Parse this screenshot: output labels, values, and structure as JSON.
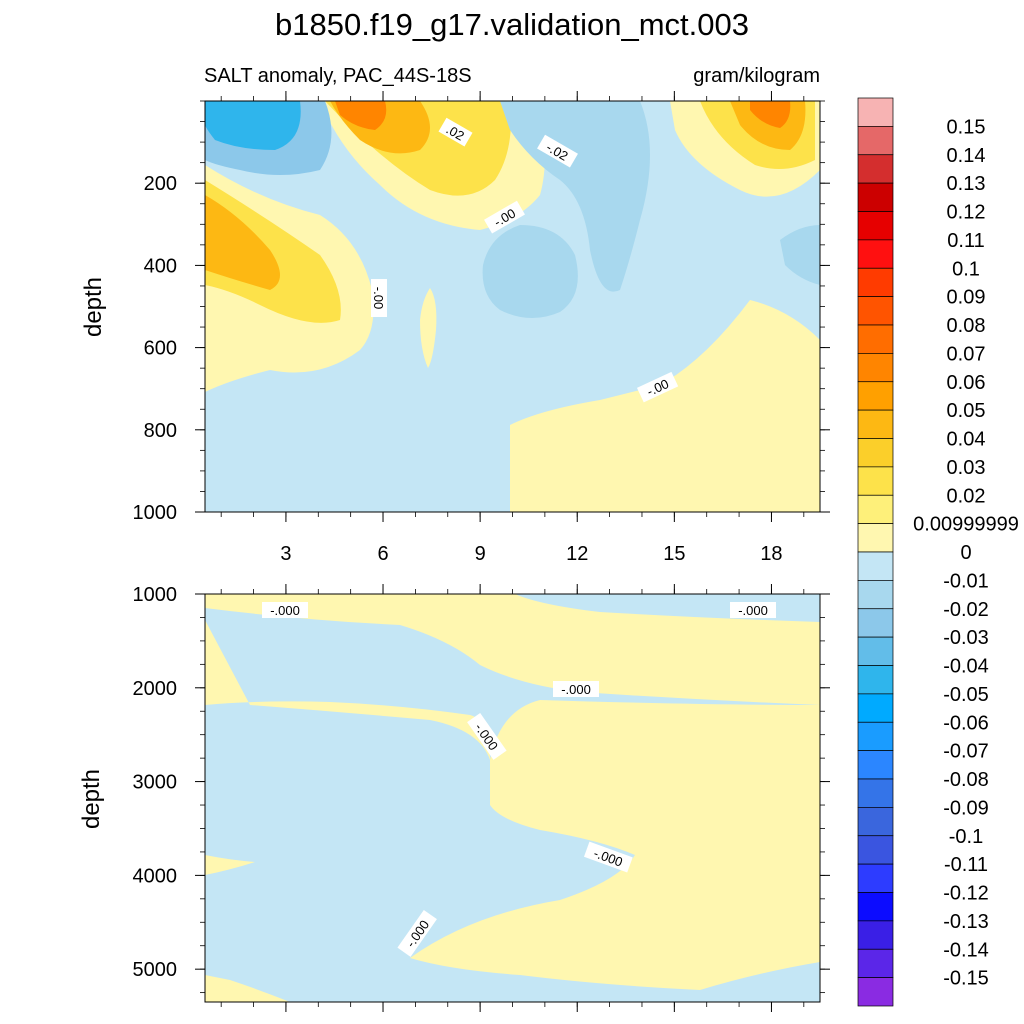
{
  "chart_data": {
    "type": "heatmap",
    "title": "b1850.f19_g17.validation_mct.003",
    "subtitle_left": "SALT anomaly, PAC_44S-18S",
    "subtitle_right": "gram/kilogram",
    "xlabel": "",
    "ylabel": "depth",
    "x_ticks": [
      "3",
      "6",
      "9",
      "12",
      "15",
      "18"
    ],
    "xlim": [
      0.5,
      19.5
    ],
    "panels": [
      {
        "name": "upper",
        "ylim": [
          1000,
          0
        ],
        "y_ticks": [
          "200",
          "400",
          "600",
          "800",
          "1000"
        ],
        "contour_labels": [
          ".02",
          "-.02",
          "-.00",
          "-.00",
          "-.00"
        ],
        "regions": [
          {
            "level": 0.005,
            "desc": "positive anomaly below ~500 m west and deep east"
          },
          {
            "level": -0.005,
            "desc": "weak negative mid-basin"
          },
          {
            "level": 0.045,
            "desc": "surface max near x=6-8"
          },
          {
            "level": 0.04,
            "desc": "max near x=19-20 surface"
          },
          {
            "level": -0.045,
            "desc": "surface min x=1-4"
          },
          {
            "level": 0.04,
            "desc": "subsurface max x=0.5-2, 250-450 m"
          }
        ]
      },
      {
        "name": "lower",
        "ylim": [
          5350,
          1000
        ],
        "y_ticks": [
          "1000",
          "2000",
          "3000",
          "4000",
          "5000"
        ],
        "contour_labels": [
          "-.000",
          "-.000",
          "-.000",
          "-.000",
          "-.000",
          "-.000"
        ],
        "regions": [
          {
            "level": 0.005,
            "desc": "positive band 1200-2100 m west, 2100-4500 m east"
          },
          {
            "level": -0.005,
            "desc": "negative band 2100-4800 m west"
          }
        ]
      }
    ],
    "colorbar": {
      "labels": [
        "0.15",
        "0.14",
        "0.13",
        "0.12",
        "0.11",
        "0.1",
        "0.09",
        "0.08",
        "0.07",
        "0.06",
        "0.05",
        "0.04",
        "0.03",
        "0.02",
        "0.00999999",
        "0",
        "-0.01",
        "-0.02",
        "-0.03",
        "-0.04",
        "-0.05",
        "-0.06",
        "-0.07",
        "-0.08",
        "-0.09",
        "-0.1",
        "-0.11",
        "-0.12",
        "-0.13",
        "-0.14",
        "-0.15"
      ],
      "colors": [
        "#f7b3b3",
        "#e56868",
        "#d42e2e",
        "#cc0000",
        "#e60000",
        "#ff1010",
        "#ff3b00",
        "#ff5400",
        "#ff6d00",
        "#ff8500",
        "#ffa000",
        "#fdb813",
        "#fbcf2a",
        "#fde24a",
        "#fef07a",
        "#fff7b0",
        "#c4e6f5",
        "#a8d8ee",
        "#8cc8ea",
        "#62bde9",
        "#2fb5ec",
        "#00aaff",
        "#1a9cff",
        "#2b86ff",
        "#3474e8",
        "#3a66dd",
        "#3a55e0",
        "#2d3cff",
        "#0c0cff",
        "#3a1fe6",
        "#5b26e8",
        "#8a2be2"
      ]
    }
  }
}
